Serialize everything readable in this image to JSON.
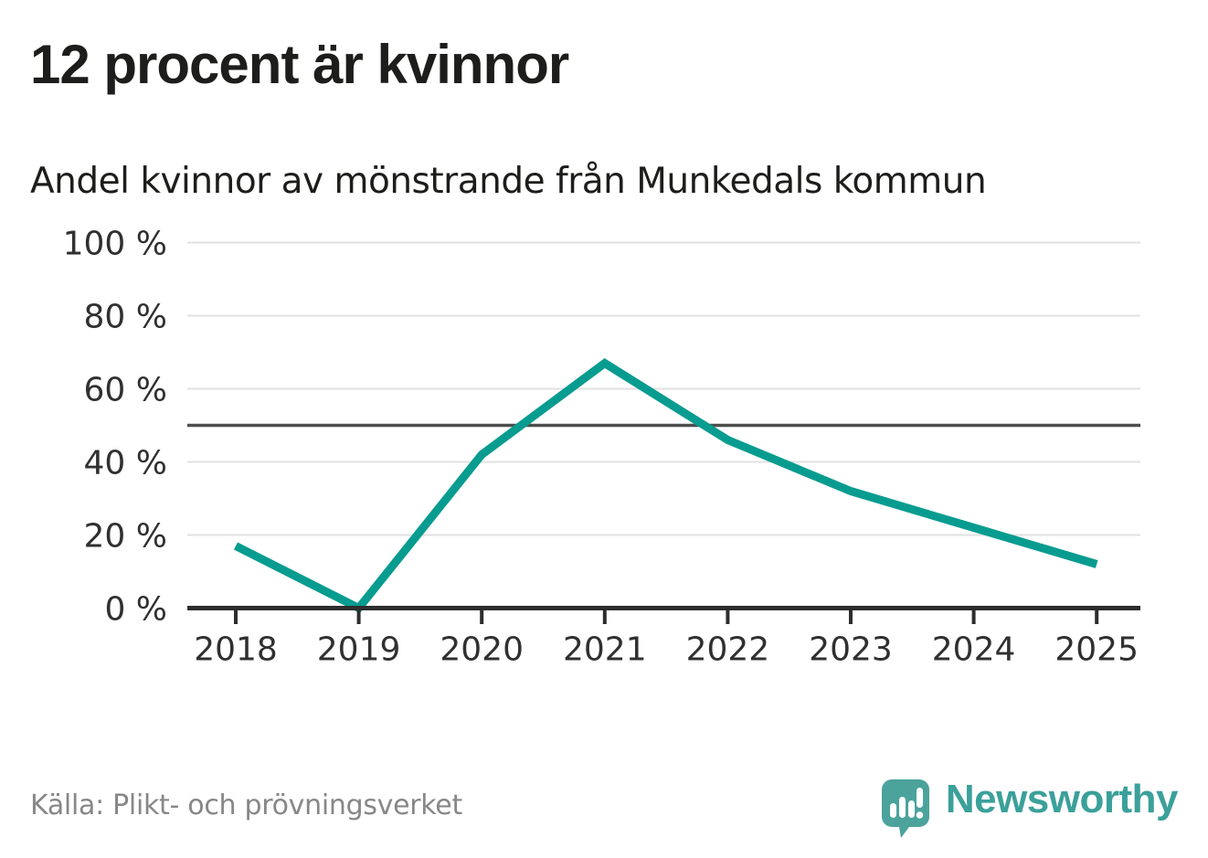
{
  "header": {
    "title": "12 procent är kvinnor",
    "subtitle": "Andel kvinnor av mönstrande från Munkedals kommun"
  },
  "chart_data": {
    "type": "line",
    "title": "12 procent är kvinnor",
    "subtitle": "Andel kvinnor av mönstrande från Munkedals kommun",
    "categories": [
      "2018",
      "2019",
      "2020",
      "2021",
      "2022",
      "2023",
      "2024",
      "2025"
    ],
    "values": [
      17,
      0,
      42,
      67,
      46,
      32,
      22,
      12
    ],
    "unit": "%",
    "xlabel": "",
    "ylabel": "",
    "ylim": [
      0,
      100
    ],
    "y_ticks": [
      0,
      20,
      40,
      60,
      80,
      100
    ],
    "y_tick_labels": [
      "0 %",
      "20 %",
      "40 %",
      "60 %",
      "80 %",
      "100 %"
    ],
    "reference_line": 50,
    "grid": true,
    "legend": "none",
    "line_color": "#089c90"
  },
  "footer": {
    "source": "Källa: Plikt- och prövningsverket",
    "brand": "Newsworthy"
  },
  "colors": {
    "accent_teal": "#089c90",
    "logo_teal": "#4ba39c",
    "logo_teal_dark": "#3f948d",
    "wordmark_teal": "#3ba09a",
    "text_dark": "#1d1d1b",
    "text_gray": "#878787",
    "axis_label": "#303030",
    "grid_light": "#e1e1e1",
    "grid_dark": "#4d4d4d",
    "axis_dark": "#2d2d2d",
    "background": "#ffffff"
  }
}
